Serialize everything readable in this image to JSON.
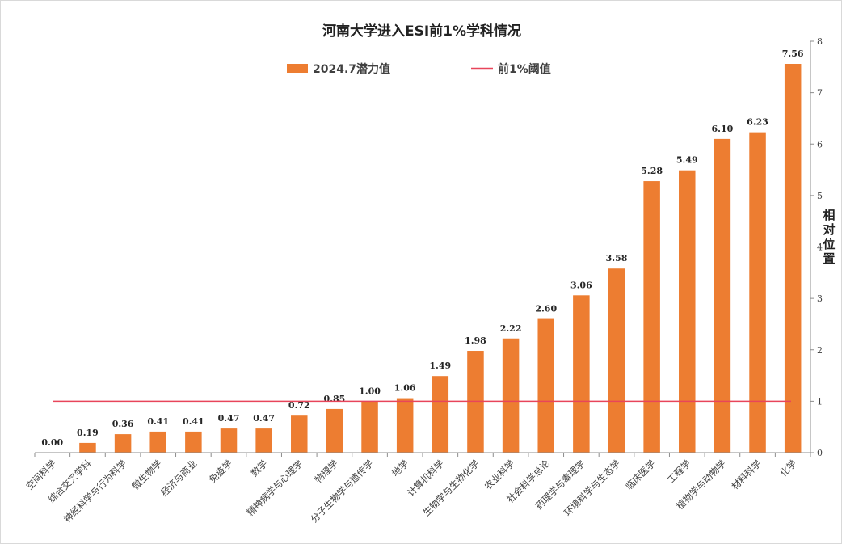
{
  "chart_data": {
    "type": "bar",
    "title": "河南大学进入ESI前1%学科情况",
    "ylabel": "相对位置",
    "ylim": [
      0,
      8
    ],
    "yticks": [
      "0",
      "1",
      "2",
      "3",
      "4",
      "5",
      "6",
      "7",
      "8"
    ],
    "y_axis_side": "right",
    "grid": false,
    "legend_position": "top",
    "bar_color": "#ED7D31",
    "threshold_color": "#E8455A",
    "categories": [
      "空间科学",
      "综合交叉学科",
      "神经科学与行为科学",
      "微生物学",
      "经济与商业",
      "免疫学",
      "数学",
      "精神病学与心理学",
      "物理学",
      "分子生物学与遗传学",
      "地学",
      "计算机科学",
      "生物学与生物化学",
      "农业科学",
      "社会科学总论",
      "药理学与毒理学",
      "环境科学与生态学",
      "临床医学",
      "工程学",
      "植物学与动物学",
      "材料科学",
      "化学"
    ],
    "series": [
      {
        "name": "2024.7潜力值",
        "kind": "bar",
        "values": [
          0.0,
          0.19,
          0.36,
          0.41,
          0.41,
          0.47,
          0.47,
          0.72,
          0.85,
          1.0,
          1.06,
          1.49,
          1.98,
          2.22,
          2.6,
          3.06,
          3.58,
          5.28,
          5.49,
          6.1,
          6.23,
          7.56
        ],
        "labels": [
          "0.00",
          "0.19",
          "0.36",
          "0.41",
          "0.41",
          "0.47",
          "0.47",
          "0.72",
          "0.85",
          "1.00",
          "1.06",
          "1.49",
          "1.98",
          "2.22",
          "2.60",
          "3.06",
          "3.58",
          "5.28",
          "5.49",
          "6.10",
          "6.23",
          "7.56"
        ]
      },
      {
        "name": "前1%阈值",
        "kind": "line",
        "value": 1
      }
    ]
  }
}
